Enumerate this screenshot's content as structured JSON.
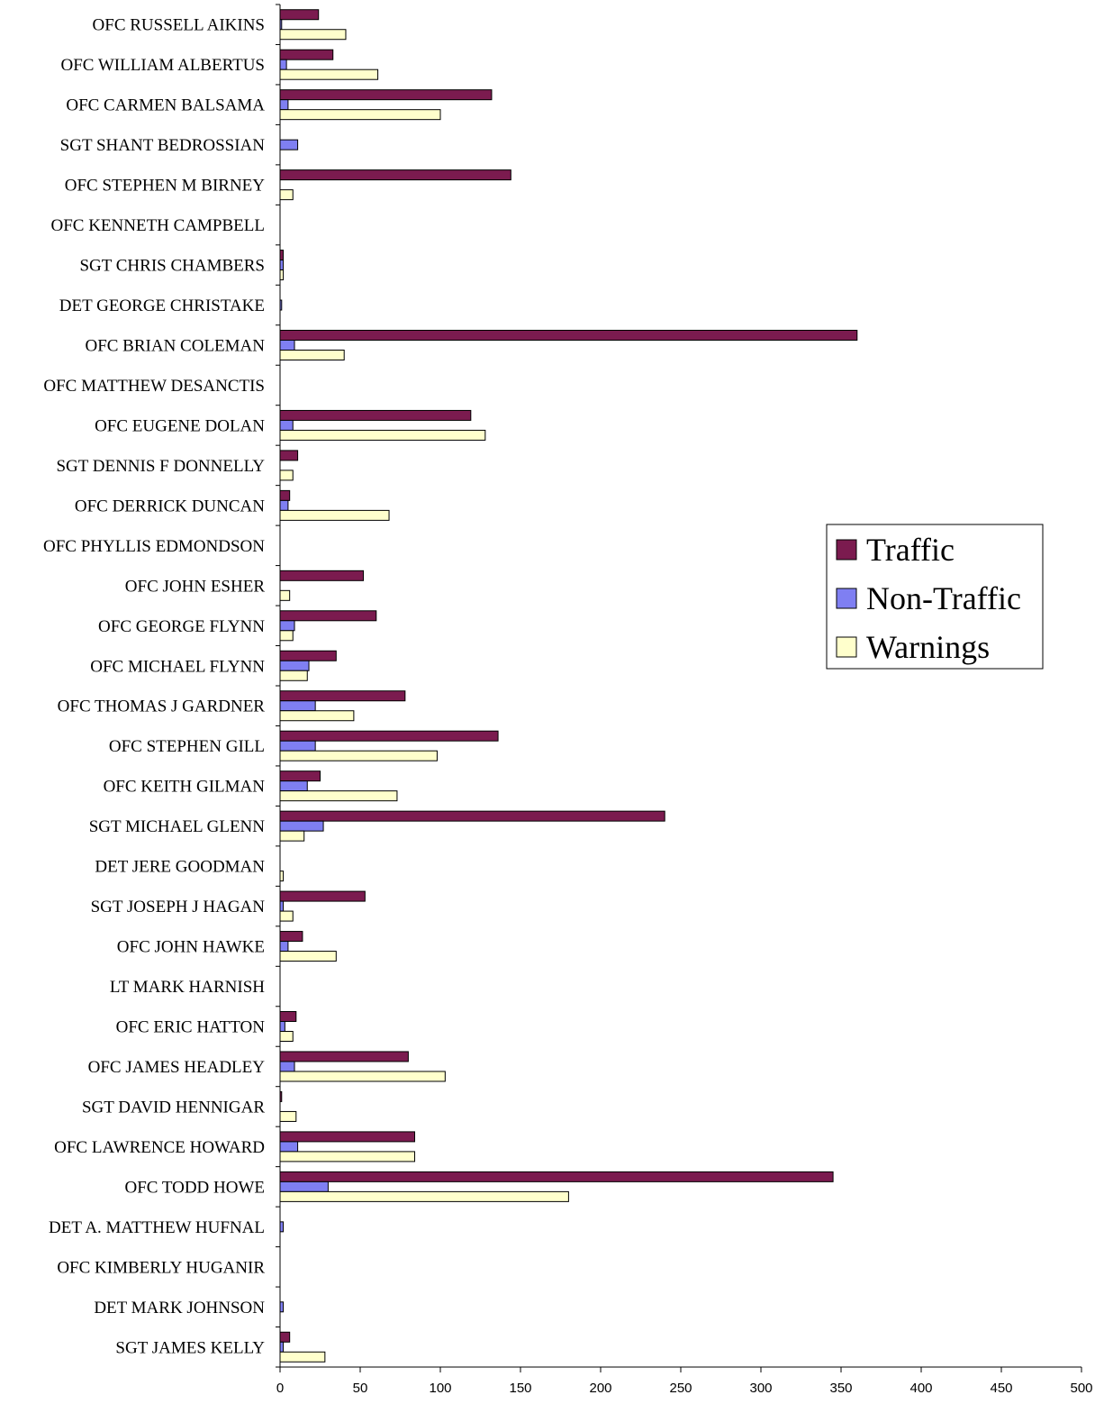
{
  "chart_data": {
    "type": "bar",
    "orientation": "horizontal",
    "title": "",
    "xlabel": "",
    "ylabel": "",
    "xlim": [
      0,
      500
    ],
    "xticks": [
      0,
      50,
      100,
      150,
      200,
      250,
      300,
      350,
      400,
      450,
      500
    ],
    "grid": false,
    "legend_position": "right",
    "categories": [
      "OFC RUSSELL AIKINS",
      "OFC WILLIAM ALBERTUS",
      "OFC CARMEN BALSAMA",
      "SGT SHANT BEDROSSIAN",
      "OFC STEPHEN M BIRNEY",
      "OFC KENNETH CAMPBELL",
      "SGT CHRIS  CHAMBERS",
      "DET GEORGE  CHRISTAKE",
      "OFC BRIAN COLEMAN",
      "OFC MATTHEW DESANCTIS",
      "OFC EUGENE  DOLAN",
      "SGT DENNIS F DONNELLY",
      "OFC DERRICK  DUNCAN",
      "OFC PHYLLIS  EDMONDSON",
      "OFC JOHN  ESHER",
      "OFC GEORGE  FLYNN",
      "OFC MICHAEL  FLYNN",
      "OFC THOMAS J GARDNER",
      "OFC STEPHEN GILL",
      "OFC KEITH  GILMAN",
      "SGT MICHAEL GLENN",
      "DET JERE GOODMAN",
      "SGT JOSEPH J HAGAN",
      "OFC JOHN  HAWKE",
      "LT MARK  HARNISH",
      "OFC ERIC  HATTON",
      "OFC JAMES  HEADLEY",
      "SGT DAVID  HENNIGAR",
      "OFC LAWRENCE  HOWARD",
      "OFC TODD HOWE",
      "DET A. MATTHEW HUFNAL",
      "OFC KIMBERLY   HUGANIR",
      "DET MARK JOHNSON",
      "SGT JAMES  KELLY"
    ],
    "series": [
      {
        "name": "Traffic",
        "color": "#7b1b4f",
        "values": [
          24,
          33,
          132,
          0,
          144,
          0,
          2,
          0,
          360,
          0,
          119,
          11,
          6,
          0,
          52,
          60,
          35,
          78,
          136,
          25,
          240,
          0,
          53,
          14,
          0,
          10,
          80,
          1,
          84,
          345,
          0,
          0,
          0,
          6
        ]
      },
      {
        "name": "Non-Traffic",
        "color": "#7f7ff2",
        "values": [
          1,
          4,
          5,
          11,
          0,
          0,
          2,
          1,
          9,
          0,
          8,
          0,
          5,
          0,
          0,
          9,
          18,
          22,
          22,
          17,
          27,
          0,
          2,
          5,
          0,
          3,
          9,
          0,
          11,
          30,
          2,
          0,
          2,
          2
        ]
      },
      {
        "name": "Warnings",
        "color": "#ffffcc",
        "values": [
          41,
          61,
          100,
          0,
          8,
          0,
          2,
          0,
          40,
          0,
          128,
          8,
          68,
          0,
          6,
          8,
          17,
          46,
          98,
          73,
          15,
          2,
          8,
          35,
          0,
          8,
          103,
          10,
          84,
          180,
          0,
          0,
          0,
          28
        ]
      }
    ]
  }
}
